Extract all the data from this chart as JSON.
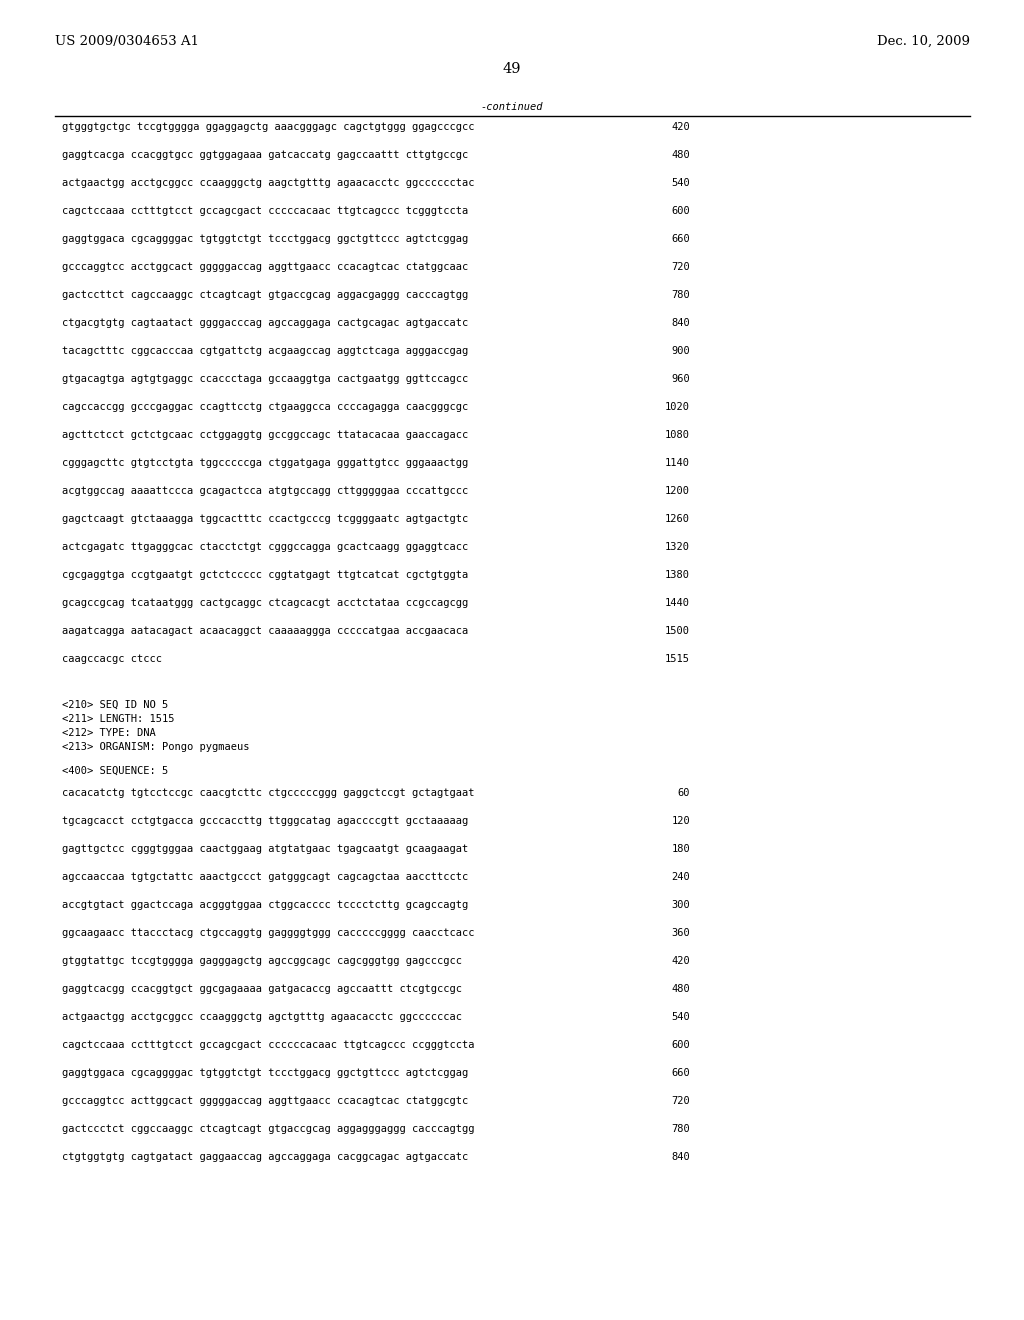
{
  "header_left": "US 2009/0304653 A1",
  "header_right": "Dec. 10, 2009",
  "page_number": "49",
  "continued_label": "-continued",
  "background_color": "#ffffff",
  "text_color": "#000000",
  "font_size_header": 9.5,
  "font_size_body": 7.5,
  "font_size_page": 10.5,
  "continued_lines": [
    [
      "gtgggtgctgc tccgtgggga ggaggagctg aaacgggagc cagctgtggg ggagcccgcc",
      "420"
    ],
    [
      "gaggtcacga ccacggtgcc ggtggagaaa gatcaccatg gagccaattt cttgtgccgc",
      "480"
    ],
    [
      "actgaactgg acctgcggcc ccaagggctg aagctgtttg agaacacctc ggcccccctac",
      "540"
    ],
    [
      "cagctccaaa cctttgtcct gccagcgact cccccacaac ttgtcagccc tcgggtccta",
      "600"
    ],
    [
      "gaggtggaca cgcaggggac tgtggtctgt tccctggacg ggctgttccc agtctcggag",
      "660"
    ],
    [
      "gcccaggtcc acctggcact gggggaccag aggttgaacc ccacagtcac ctatggcaac",
      "720"
    ],
    [
      "gactccttct cagccaaggc ctcagtcagt gtgaccgcag aggacgaggg cacccagtgg",
      "780"
    ],
    [
      "ctgacgtgtg cagtaatact ggggacccag agccaggaga cactgcagac agtgaccatc",
      "840"
    ],
    [
      "tacagctttc cggcacccaa cgtgattctg acgaagccag aggtctcaga agggaccgag",
      "900"
    ],
    [
      "gtgacagtga agtgtgaggc ccaccctaga gccaaggtga cactgaatgg ggttccagcc",
      "960"
    ],
    [
      "cagccaccgg gcccgaggac ccagttcctg ctgaaggcca ccccagagga caacgggcgc",
      "1020"
    ],
    [
      "agcttctcct gctctgcaac cctggaggtg gccggccagc ttatacacaa gaaccagacc",
      "1080"
    ],
    [
      "cgggagcttc gtgtcctgta tggcccccga ctggatgaga gggattgtcc gggaaactgg",
      "1140"
    ],
    [
      "acgtggccag aaaattccca gcagactcca atgtgccagg cttgggggaa cccattgccc",
      "1200"
    ],
    [
      "gagctcaagt gtctaaagga tggcactttc ccactgcccg tcggggaatc agtgactgtc",
      "1260"
    ],
    [
      "actcgagatc ttgagggcac ctacctctgt cgggccagga gcactcaagg ggaggtcacc",
      "1320"
    ],
    [
      "cgcgaggtga ccgtgaatgt gctctccccc cggtatgagt ttgtcatcat cgctgtggta",
      "1380"
    ],
    [
      "gcagccgcag tcataatggg cactgcaggc ctcagcacgt acctctataa ccgccagcgg",
      "1440"
    ],
    [
      "aagatcagga aatacagact acaacaggct caaaaaggga cccccatgaa accgaacaca",
      "1500"
    ],
    [
      "caagccacgc ctccc",
      "1515"
    ]
  ],
  "seq_info": [
    "<210> SEQ ID NO 5",
    "<211> LENGTH: 1515",
    "<212> TYPE: DNA",
    "<213> ORGANISM: Pongo pygmaeus"
  ],
  "seq_label": "<400> SEQUENCE: 5",
  "sequence_lines": [
    [
      "cacacatctg tgtcctccgc caacgtcttc ctgcccccggg gaggctccgt gctagtgaat",
      "60"
    ],
    [
      "tgcagcacct cctgtgacca gcccaccttg ttgggcatag agaccccgtt gcctaaaaag",
      "120"
    ],
    [
      "gagttgctcc cgggtgggaa caactggaag atgtatgaac tgagcaatgt gcaagaagat",
      "180"
    ],
    [
      "agccaaccaa tgtgctattc aaactgccct gatgggcagt cagcagctaa aaccttcctc",
      "240"
    ],
    [
      "accgtgtact ggactccaga acgggtggaa ctggcacccc tcccctcttg gcagccagtg",
      "300"
    ],
    [
      "ggcaagaacc ttaccctacg ctgccaggtg gaggggtggg cacccccgggg caacctcacc",
      "360"
    ],
    [
      "gtggtattgc tccgtgggga gagggagctg agccggcagc cagcgggtgg gagcccgcc",
      "420"
    ],
    [
      "gaggtcacgg ccacggtgct ggcgagaaaa gatgacaccg agccaattt ctcgtgccgc",
      "480"
    ],
    [
      "actgaactgg acctgcggcc ccaagggctg agctgtttg agaacacctc ggccccccac",
      "540"
    ],
    [
      "cagctccaaa cctttgtcct gccagcgact ccccccacaac ttgtcagccc ccgggtccta",
      "600"
    ],
    [
      "gaggtggaca cgcaggggac tgtggtctgt tccctggacg ggctgttccc agtctcggag",
      "660"
    ],
    [
      "gcccaggtcc acttggcact gggggaccag aggttgaacc ccacagtcac ctatggcgtc",
      "720"
    ],
    [
      "gactccctct cggccaaggc ctcagtcagt gtgaccgcag aggagggaggg cacccagtgg",
      "780"
    ],
    [
      "ctgtggtgtg cagtgatact gaggaaccag agccaggaga cacggcagac agtgaccatc",
      "840"
    ]
  ]
}
